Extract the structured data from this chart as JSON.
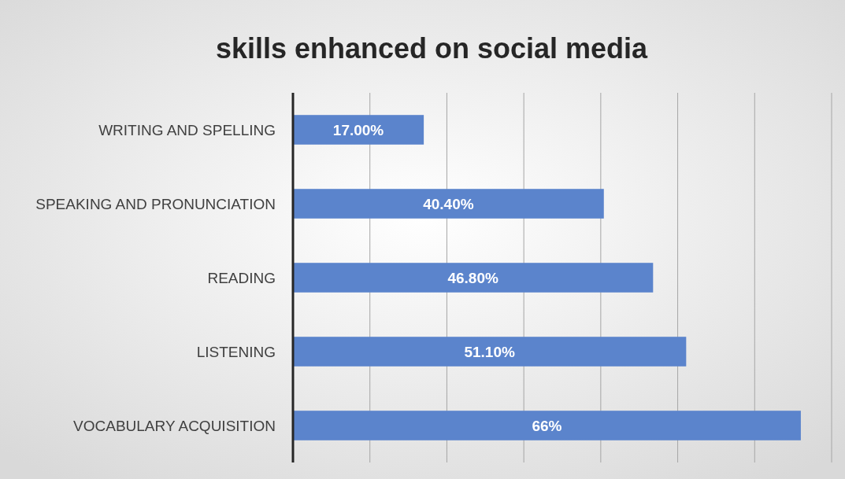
{
  "chart_data": {
    "type": "bar",
    "orientation": "horizontal",
    "title": "skills enhanced on social media",
    "categories": [
      "WRITING AND SPELLING",
      "SPEAKING AND PRONUNCIATION",
      "READING ",
      "LISTENING",
      "VOCABULARY ACQUISITION"
    ],
    "values": [
      17,
      40.4,
      46.8,
      51.1,
      66
    ],
    "value_labels": [
      "17.00%",
      "40.40%",
      "46.80%",
      "51.10%",
      "66%"
    ],
    "color": "#5b84cc",
    "xlim": [
      0,
      70
    ],
    "xticks": [
      {
        "value": 0,
        "label": null
      },
      {
        "value": 10,
        "label": null
      },
      {
        "value": 20,
        "label": null
      },
      {
        "value": 30,
        "label": null
      },
      {
        "value": 40,
        "label": null
      },
      {
        "value": 50,
        "label": null
      },
      {
        "value": 60,
        "label": null
      },
      {
        "value": 70,
        "label": null
      }
    ],
    "grid": "x",
    "tick_labels": "y"
  }
}
